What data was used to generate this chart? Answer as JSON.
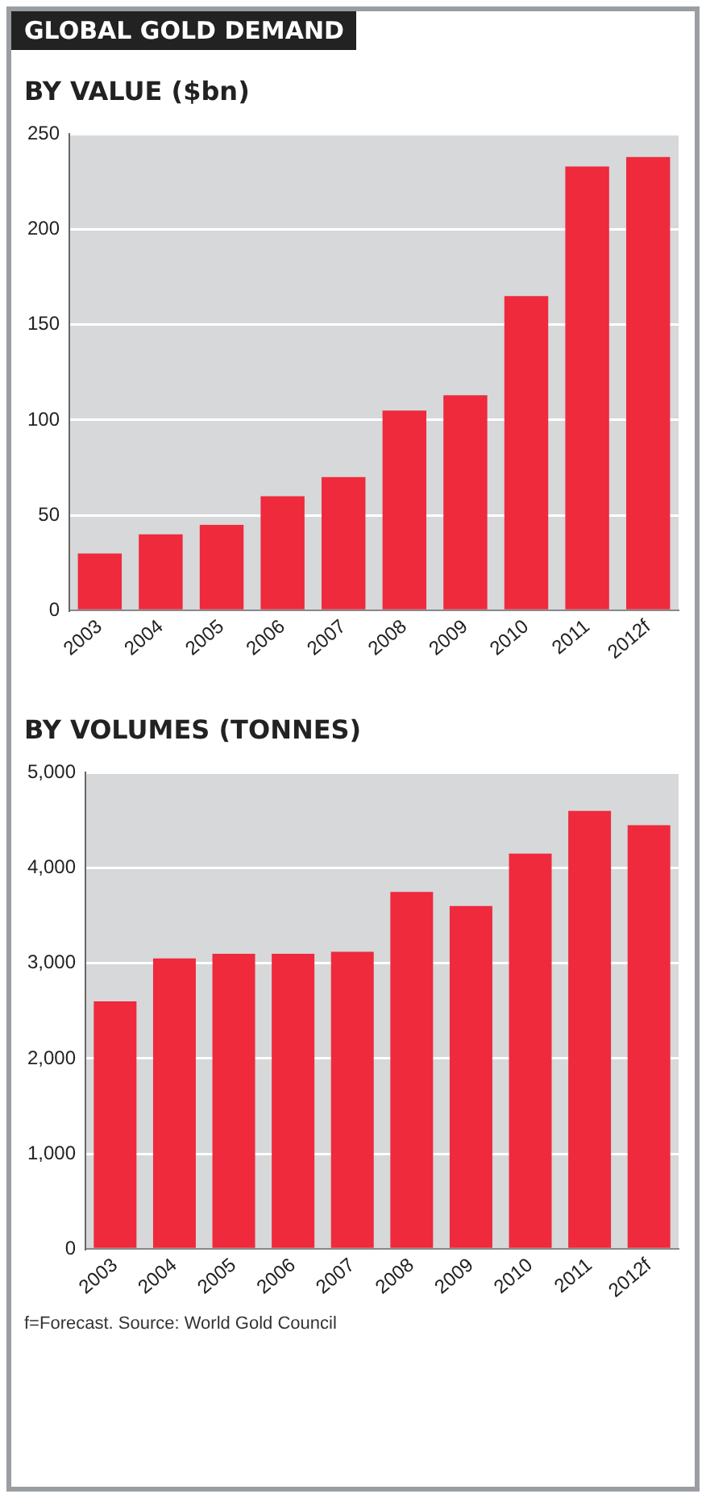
{
  "chart_data": [
    {
      "type": "bar",
      "title": "GLOBAL GOLD DEMAND",
      "subtitle": "BY VALUE ($bn)",
      "categories": [
        "2003",
        "2004",
        "2005",
        "2006",
        "2007",
        "2008",
        "2009",
        "2010",
        "2011",
        "2012f"
      ],
      "values": [
        30,
        40,
        45,
        60,
        70,
        105,
        113,
        165,
        233,
        238
      ],
      "color": "#ee2a3c",
      "ylim": [
        0,
        250
      ],
      "yticks": [
        0,
        50,
        100,
        150,
        200,
        250
      ],
      "grid": "y"
    },
    {
      "type": "bar",
      "title": "BY VOLUMES (TONNES)",
      "categories": [
        "2003",
        "2004",
        "2005",
        "2006",
        "2007",
        "2008",
        "2009",
        "2010",
        "2011",
        "2012f"
      ],
      "values": [
        2600,
        3050,
        3100,
        3100,
        3120,
        3750,
        3600,
        4150,
        4600,
        4450
      ],
      "color": "#ee2a3c",
      "ylim": [
        0,
        5000
      ],
      "yticks": [
        0,
        {
          "value": 1000,
          "label": "1,000"
        },
        {
          "value": 2000,
          "label": "2,000"
        },
        {
          "value": 3000,
          "label": "3,000"
        },
        {
          "value": 4000,
          "label": "4,000"
        },
        {
          "value": 5000,
          "label": "5,000"
        }
      ],
      "grid": "y",
      "annotations": [
        "f=Forecast. Source: World Gold Council"
      ]
    }
  ]
}
